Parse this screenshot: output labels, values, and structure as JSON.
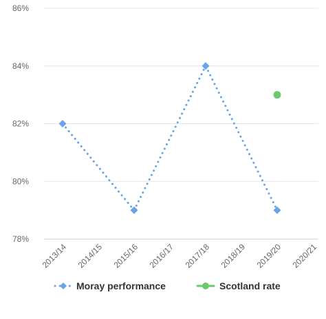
{
  "chart_data": {
    "type": "line",
    "title": "",
    "xlabel": "",
    "ylabel": "",
    "categories": [
      "2013/14",
      "2014/15",
      "2015/16",
      "2016/17",
      "2017/18",
      "2018/19",
      "2019/20",
      "2020/21"
    ],
    "ylim": [
      78,
      86
    ],
    "yticks": [
      78,
      80,
      82,
      84,
      86
    ],
    "ytick_labels": [
      "78%",
      "80%",
      "82%",
      "84%",
      "86%"
    ],
    "grid": true,
    "legend_position": "bottom",
    "series": [
      {
        "name": "Moray performance",
        "color": "#6aa3e8",
        "line_style": "dotted",
        "marker": "diamond",
        "points": [
          {
            "x": "2013/14",
            "y": 82
          },
          {
            "x": "2015/16",
            "y": 79
          },
          {
            "x": "2017/18",
            "y": 84
          },
          {
            "x": "2019/20",
            "y": 79
          }
        ]
      },
      {
        "name": "Scotland rate",
        "color": "#6cc96c",
        "line_style": "solid",
        "marker": "circle",
        "points": [
          {
            "x": "2019/20",
            "y": 83
          }
        ]
      }
    ]
  }
}
